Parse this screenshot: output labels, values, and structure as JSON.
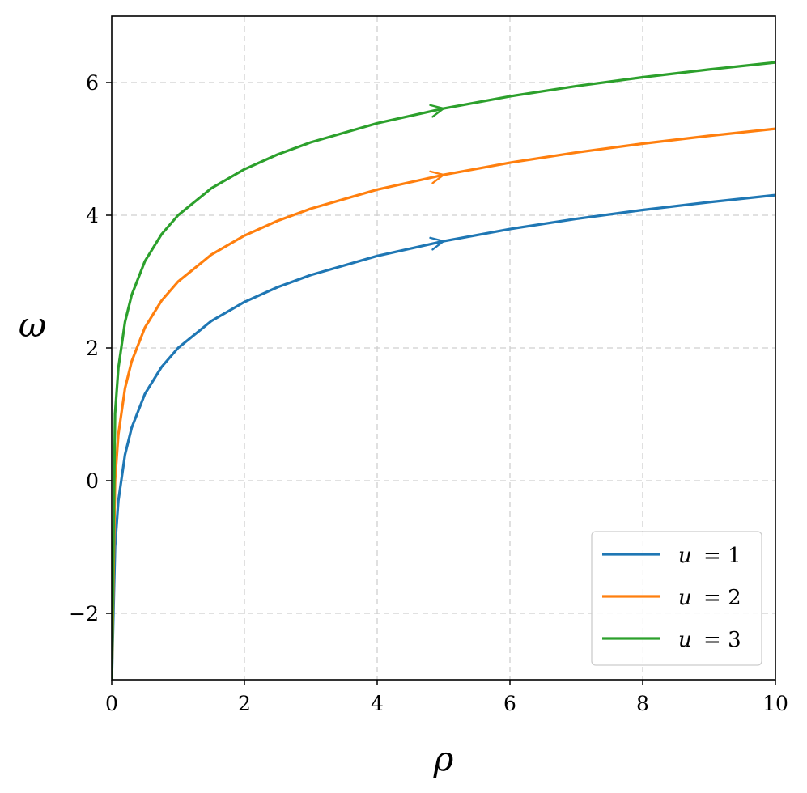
{
  "chart_data": {
    "type": "line",
    "title": "",
    "xlabel": "ρ",
    "ylabel": "ω",
    "xlim": [
      0,
      10
    ],
    "ylim": [
      -3,
      7
    ],
    "xticks": [
      0,
      2,
      4,
      6,
      8,
      10
    ],
    "yticks": [
      -2,
      0,
      2,
      4,
      6
    ],
    "xtick_labels": [
      "0",
      "2",
      "4",
      "6",
      "8",
      "10"
    ],
    "ytick_labels": [
      "−2",
      "0",
      "2",
      "4",
      "6"
    ],
    "grid": true,
    "legend_position": "bottom-right",
    "function": "omega = u + ln(rho) + 1",
    "arrow_x": 5,
    "x": [
      0.05,
      0.1,
      0.2,
      0.3,
      0.5,
      0.75,
      1,
      1.5,
      2,
      2.5,
      3,
      4,
      5,
      6,
      7,
      8,
      9,
      10
    ],
    "series": [
      {
        "name": "u = 1",
        "legend_var": "u",
        "legend_value": "= 1",
        "color": "#1f77b4",
        "values": [
          -0.996,
          -0.303,
          0.391,
          0.796,
          1.307,
          1.712,
          2.0,
          2.405,
          2.693,
          2.916,
          3.099,
          3.386,
          3.609,
          3.792,
          3.946,
          4.079,
          4.197,
          4.303
        ]
      },
      {
        "name": "u = 2",
        "legend_var": "u",
        "legend_value": "= 2",
        "color": "#ff7f0e",
        "values": [
          0.004,
          0.697,
          1.391,
          1.796,
          2.307,
          2.712,
          3.0,
          3.405,
          3.693,
          3.916,
          4.099,
          4.386,
          4.609,
          4.792,
          4.946,
          5.079,
          5.197,
          5.303
        ]
      },
      {
        "name": "u = 3",
        "legend_var": "u",
        "legend_value": "= 3",
        "color": "#2ca02c",
        "values": [
          1.004,
          1.697,
          2.391,
          2.796,
          3.307,
          3.712,
          4.0,
          4.405,
          4.693,
          4.916,
          5.099,
          5.386,
          5.609,
          5.792,
          5.946,
          6.079,
          6.197,
          6.303
        ]
      }
    ]
  }
}
